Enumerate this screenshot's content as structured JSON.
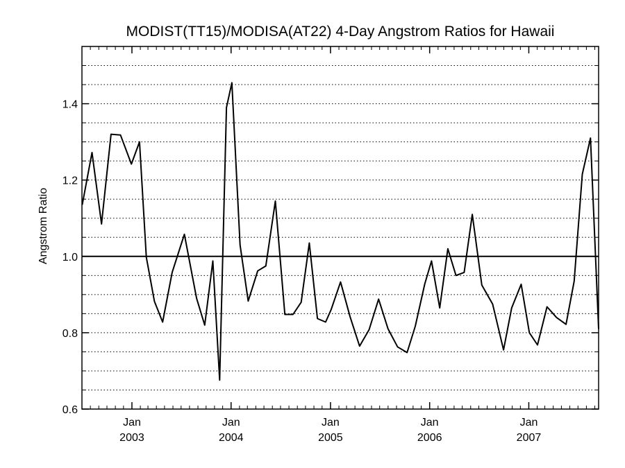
{
  "chart_data": {
    "type": "line",
    "title": "MODIST(TT15)/MODISA(AT22) 4-Day Angstrom Ratios for Hawaii",
    "xlabel": "",
    "ylabel": "Angstrom Ratio",
    "ylim": [
      0.6,
      1.55
    ],
    "xlim": [
      "2002-07-01",
      "2007-09-15"
    ],
    "yticks": [
      "0.6",
      "0.8",
      "1.0",
      "1.2",
      "1.4"
    ],
    "xticks": [
      {
        "month": "Jan",
        "year": "2003",
        "date": "2003-01-01"
      },
      {
        "month": "Jan",
        "year": "2004",
        "date": "2004-01-01"
      },
      {
        "month": "Jan",
        "year": "2005",
        "date": "2005-01-01"
      },
      {
        "month": "Jan",
        "year": "2006",
        "date": "2006-01-01"
      },
      {
        "month": "Jan",
        "year": "2007",
        "date": "2007-01-01"
      }
    ],
    "grid": true,
    "grid_style": "dotted horizontal",
    "reference_line": 1.0,
    "line_color": "#000000",
    "series": [
      {
        "name": "",
        "x": [
          "2002-07-02",
          "2002-08-07",
          "2002-09-11",
          "2002-10-16",
          "2002-11-20",
          "2002-12-30",
          "2003-01-29",
          "2003-02-23",
          "2003-03-25",
          "2003-04-24",
          "2003-05-29",
          "2003-07-13",
          "2003-08-27",
          "2003-09-26",
          "2003-10-26",
          "2003-11-20",
          "2003-12-15",
          "2004-01-04",
          "2004-02-03",
          "2004-03-04",
          "2004-04-08",
          "2004-05-08",
          "2004-06-12",
          "2004-07-17",
          "2004-08-16",
          "2004-09-15",
          "2004-10-15",
          "2004-11-14",
          "2004-12-14",
          "2005-01-03",
          "2005-02-07",
          "2005-03-14",
          "2005-04-18",
          "2005-05-23",
          "2005-06-27",
          "2005-08-01",
          "2005-09-05",
          "2005-10-10",
          "2005-11-09",
          "2005-12-14",
          "2006-01-08",
          "2006-02-07",
          "2006-03-09",
          "2006-04-08",
          "2006-05-08",
          "2006-06-07",
          "2006-07-12",
          "2006-08-21",
          "2006-09-30",
          "2006-10-30",
          "2006-12-04",
          "2007-01-03",
          "2007-02-02",
          "2007-03-09",
          "2007-04-13",
          "2007-05-18",
          "2007-06-17",
          "2007-07-17",
          "2007-08-16",
          "2007-09-15"
        ],
        "values": [
          1.135,
          1.272,
          1.085,
          1.32,
          1.318,
          1.242,
          1.3,
          0.998,
          0.882,
          0.828,
          0.958,
          1.058,
          0.89,
          0.82,
          0.988,
          0.676,
          1.39,
          1.455,
          1.03,
          0.883,
          0.962,
          0.975,
          1.145,
          0.848,
          0.848,
          0.88,
          1.035,
          0.837,
          0.828,
          0.86,
          0.933,
          0.842,
          0.765,
          0.808,
          0.888,
          0.81,
          0.763,
          0.748,
          0.817,
          0.928,
          0.988,
          0.865,
          1.02,
          0.95,
          0.958,
          1.11,
          0.925,
          0.875,
          0.755,
          0.865,
          0.927,
          0.8,
          0.768,
          0.868,
          0.84,
          0.822,
          0.935,
          1.215,
          1.31,
          0.81
        ]
      }
    ]
  }
}
